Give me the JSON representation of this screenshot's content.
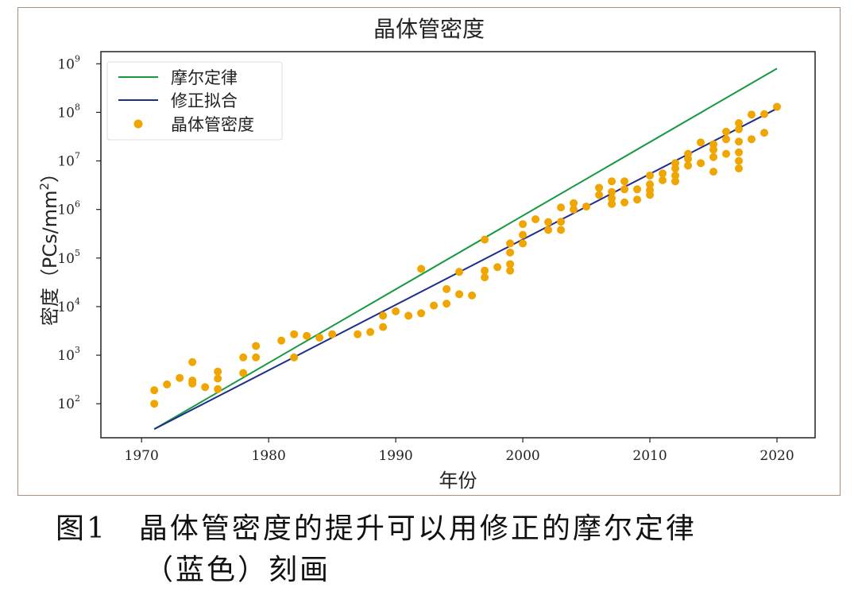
{
  "chart_data": {
    "type": "scatter",
    "title": "晶体管密度",
    "xlabel": "年份",
    "ylabel_main": "密度",
    "ylabel_unit": "（PCs/mm",
    "ylabel_sup": "2",
    "ylabel_close": "）",
    "xlim": [
      1966.8,
      2023
    ],
    "ylim_log10": [
      1.3,
      9.25
    ],
    "y_scale": "log",
    "grid": false,
    "legend_position": "top-left",
    "x_ticks": [
      1970,
      1980,
      1990,
      2000,
      2010,
      2020
    ],
    "y_ticks_log10": [
      2,
      3,
      4,
      5,
      6,
      7,
      8,
      9
    ],
    "y_tick_base": "10",
    "legend": {
      "moore": "摩尔定律",
      "fit": "修正拟合",
      "density": "晶体管密度"
    },
    "colors": {
      "moore": "#159a3f",
      "fit": "#1f2d8c",
      "density": "#f0a500"
    },
    "lines": [
      {
        "key": "moore",
        "points": [
          [
            1971,
            30
          ],
          [
            2020,
            800000000
          ]
        ]
      },
      {
        "key": "fit",
        "points": [
          [
            1971,
            30
          ],
          [
            2020,
            120000000
          ]
        ]
      }
    ],
    "points": [
      [
        1971,
        100
      ],
      [
        1971,
        190
      ],
      [
        1972,
        250
      ],
      [
        1973,
        340
      ],
      [
        1974,
        720
      ],
      [
        1974,
        300
      ],
      [
        1974,
        260
      ],
      [
        1975,
        220
      ],
      [
        1976,
        200
      ],
      [
        1976,
        330
      ],
      [
        1976,
        460
      ],
      [
        1978,
        430
      ],
      [
        1978,
        900
      ],
      [
        1979,
        900
      ],
      [
        1979,
        1550
      ],
      [
        1981,
        2000
      ],
      [
        1982,
        2700
      ],
      [
        1982,
        900
      ],
      [
        1983,
        2500
      ],
      [
        1984,
        2300
      ],
      [
        1985,
        2700
      ],
      [
        1987,
        2700
      ],
      [
        1988,
        3000
      ],
      [
        1989,
        3800
      ],
      [
        1989,
        6500
      ],
      [
        1990,
        8000
      ],
      [
        1991,
        6500
      ],
      [
        1992,
        7300
      ],
      [
        1992,
        60000
      ],
      [
        1993,
        10500
      ],
      [
        1994,
        11500
      ],
      [
        1994,
        23000
      ],
      [
        1995,
        18000
      ],
      [
        1995,
        52000
      ],
      [
        1996,
        17000
      ],
      [
        1997,
        40000
      ],
      [
        1997,
        55000
      ],
      [
        1997,
        240000
      ],
      [
        1998,
        65000
      ],
      [
        1999,
        55000
      ],
      [
        1999,
        75000
      ],
      [
        1999,
        130000
      ],
      [
        1999,
        200000
      ],
      [
        2000,
        200000
      ],
      [
        2000,
        300000
      ],
      [
        2000,
        500000
      ],
      [
        2001,
        630000
      ],
      [
        2002,
        380000
      ],
      [
        2002,
        550000
      ],
      [
        2003,
        380000
      ],
      [
        2003,
        560000
      ],
      [
        2003,
        1100000
      ],
      [
        2004,
        1000000
      ],
      [
        2004,
        1350000
      ],
      [
        2005,
        1150000
      ],
      [
        2006,
        2000000
      ],
      [
        2006,
        2800000
      ],
      [
        2007,
        1300000
      ],
      [
        2007,
        1700000
      ],
      [
        2007,
        2300000
      ],
      [
        2007,
        3800000
      ],
      [
        2008,
        1400000
      ],
      [
        2008,
        2600000
      ],
      [
        2008,
        3800000
      ],
      [
        2009,
        1600000
      ],
      [
        2009,
        2600000
      ],
      [
        2010,
        2000000
      ],
      [
        2010,
        2500000
      ],
      [
        2010,
        3300000
      ],
      [
        2010,
        5000000
      ],
      [
        2011,
        4000000
      ],
      [
        2011,
        5500000
      ],
      [
        2012,
        3800000
      ],
      [
        2012,
        5000000
      ],
      [
        2012,
        7000000
      ],
      [
        2012,
        9000000
      ],
      [
        2013,
        8000000
      ],
      [
        2013,
        11000000
      ],
      [
        2013,
        14000000
      ],
      [
        2014,
        9000000
      ],
      [
        2014,
        24000000
      ],
      [
        2015,
        6000000
      ],
      [
        2015,
        12000000
      ],
      [
        2015,
        17000000
      ],
      [
        2015,
        22000000
      ],
      [
        2016,
        14000000
      ],
      [
        2016,
        28000000
      ],
      [
        2016,
        40000000
      ],
      [
        2017,
        7000000
      ],
      [
        2017,
        10000000
      ],
      [
        2017,
        15000000
      ],
      [
        2017,
        25000000
      ],
      [
        2017,
        45000000
      ],
      [
        2017,
        60000000
      ],
      [
        2018,
        28000000
      ],
      [
        2018,
        90000000
      ],
      [
        2019,
        38000000
      ],
      [
        2019,
        92000000
      ],
      [
        2020,
        130000000
      ]
    ]
  },
  "caption": {
    "figure_number": "图1",
    "text_line1": "晶体管密度的提升可以用修正的摩尔定律",
    "text_line2": "（蓝色）刻画"
  }
}
